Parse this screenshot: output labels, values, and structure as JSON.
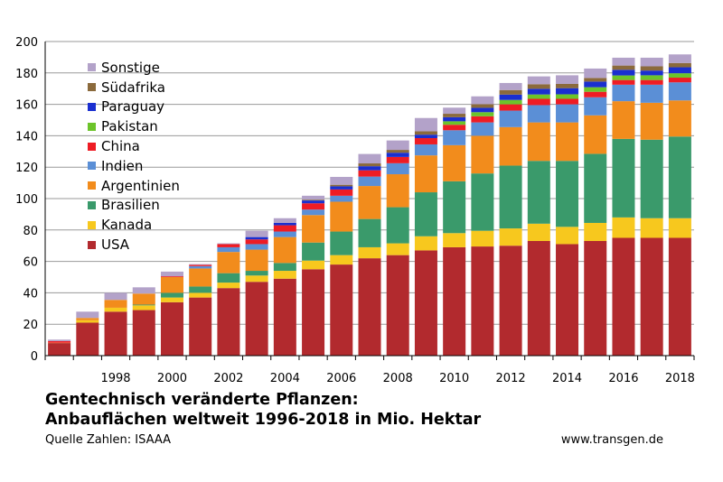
{
  "chart_data": {
    "type": "bar",
    "stacked": true,
    "title": "Gentechnisch veränderte Pflanzen:",
    "subtitle": "Anbauflächen weltweit 1996-2018 in Mio. Hektar",
    "xlabel": "",
    "ylabel": "",
    "ylim": [
      0,
      200
    ],
    "yticks": [
      0,
      20,
      40,
      60,
      80,
      100,
      120,
      140,
      160,
      180,
      200
    ],
    "grid": true,
    "legend_position": "top-left",
    "categories": [
      "1996",
      "1997",
      "1998",
      "1999",
      "2000",
      "2001",
      "2002",
      "2003",
      "2004",
      "2005",
      "2006",
      "2007",
      "2008",
      "2009",
      "2010",
      "2011",
      "2012",
      "2013",
      "2014",
      "2015",
      "2016",
      "2017",
      "2018"
    ],
    "xtick_labels": [
      "",
      "",
      "1998",
      "",
      "2000",
      "",
      "2002",
      "",
      "2004",
      "",
      "2006",
      "",
      "2008",
      "",
      "2010",
      "",
      "2012",
      "",
      "2014",
      "",
      "2016",
      "",
      "2018"
    ],
    "series": [
      {
        "name": "USA",
        "color": "#b22a2e",
        "values": [
          8,
          21,
          28,
          29,
          34,
          37,
          43,
          47,
          49,
          55,
          58,
          62,
          64,
          67,
          69,
          69.5,
          70,
          73,
          71,
          73,
          75,
          75,
          75
        ]
      },
      {
        "name": "Kanada",
        "color": "#f7c81e",
        "values": [
          0.1,
          1.5,
          2.5,
          3,
          3,
          3,
          3.5,
          4,
          5,
          5.5,
          6,
          7,
          7.5,
          9,
          9,
          10,
          11,
          11,
          11,
          11.5,
          13,
          12.5,
          12.5
        ]
      },
      {
        "name": "Brasilien",
        "color": "#3a9a6b",
        "values": [
          0,
          0,
          0,
          0.5,
          3,
          4,
          6,
          3,
          5,
          11.5,
          15,
          18,
          23,
          28,
          33,
          36.5,
          40,
          40,
          42,
          44,
          50,
          50,
          52
        ]
      },
      {
        "name": "Argentinien",
        "color": "#f28c1c",
        "values": [
          0.1,
          1.5,
          5,
          7,
          10,
          11.5,
          13.5,
          13.5,
          16.5,
          17.5,
          19,
          21,
          21,
          23.5,
          23,
          24,
          24.5,
          24.5,
          24.5,
          24.5,
          24,
          23.5,
          23
        ]
      },
      {
        "name": "Indien",
        "color": "#5b8fd6",
        "values": [
          0,
          0,
          0,
          0,
          0,
          1.5,
          3,
          3.5,
          3.5,
          3.5,
          3.8,
          6,
          7,
          7,
          9.5,
          8.5,
          10.5,
          11,
          11.5,
          11.5,
          10.5,
          11.5,
          11.5
        ]
      },
      {
        "name": "China",
        "color": "#ee1c24",
        "values": [
          1,
          0,
          0,
          0,
          0.5,
          0.8,
          2,
          3,
          4,
          4,
          4,
          4,
          4,
          4,
          3.5,
          3.9,
          4,
          4,
          3.5,
          3.5,
          3,
          3,
          3
        ]
      },
      {
        "name": "Pakistan",
        "color": "#6cc42a",
        "values": [
          0,
          0,
          0,
          0,
          0,
          0,
          0,
          0,
          0,
          0,
          0,
          0,
          0,
          0,
          2.2,
          2.6,
          2.8,
          2.8,
          2.9,
          2.9,
          2.9,
          3,
          2.8
        ]
      },
      {
        "name": "Paraguay",
        "color": "#1a2fd0",
        "values": [
          0,
          0,
          0,
          0,
          0,
          0,
          0,
          1.5,
          1.5,
          1.8,
          2,
          2.6,
          2.7,
          2.2,
          2.6,
          2.8,
          3.4,
          3.6,
          3.9,
          3.6,
          3.6,
          3,
          3.8
        ]
      },
      {
        "name": "Südafrika",
        "color": "#8b6a3c",
        "values": [
          0,
          0,
          0,
          0,
          0,
          0,
          0,
          0,
          0,
          0.5,
          1,
          1.8,
          1.8,
          2.1,
          2.2,
          2.3,
          2.9,
          2.9,
          2.7,
          2.3,
          2.7,
          2.7,
          2.7
        ]
      },
      {
        "name": "Sonstige",
        "color": "#b3a2c9",
        "values": [
          1,
          4,
          4.5,
          4,
          3,
          0.5,
          0.5,
          4,
          3,
          2.5,
          5,
          6,
          6,
          8.5,
          3.9,
          5,
          4.5,
          5,
          5.5,
          6,
          5,
          5.5,
          5.5
        ]
      }
    ]
  },
  "legend_items": [
    "Sonstige",
    "Südafrika",
    "Paraguay",
    "Pakistan",
    "China",
    "Indien",
    "Argentinien",
    "Brasilien",
    "Kanada",
    "USA"
  ],
  "footer": {
    "title_line1": "Gentechnisch veränderte Pflanzen:",
    "title_line2": "Anbauflächen weltweit 1996-2018 in Mio. Hektar",
    "source": "Quelle Zahlen: ISAAA",
    "website": "www.transgen.de"
  }
}
